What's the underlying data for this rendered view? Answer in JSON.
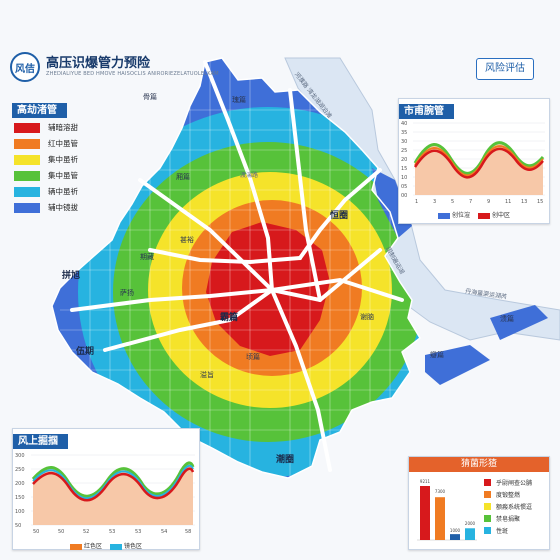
{
  "header": {
    "logo_text": "风佶",
    "title": "高压识爆管力预险",
    "subtitle": "ZHEDIALIYUE BED HMOVE HAISOCLIS ANIRORIEZELATUOLELKAM"
  },
  "risk_button": {
    "label": "风险评估"
  },
  "legend": {
    "title": "高劫渚管",
    "items": [
      {
        "label": "辅暗溶甜",
        "color": "#d7191c"
      },
      {
        "label": "红中虽管",
        "color": "#f07b22"
      },
      {
        "label": "集中虽祈",
        "color": "#f5e32a"
      },
      {
        "label": "集中虽管",
        "color": "#57c23a"
      },
      {
        "label": "辆中虽祈",
        "color": "#27b3e0"
      },
      {
        "label": "辅中镜拔",
        "color": "#3f6fd8"
      }
    ]
  },
  "map": {
    "areas": [
      {
        "name": "骨篇",
        "cls": "area"
      },
      {
        "name": "瑰篇",
        "cls": "area"
      },
      {
        "name": "厢篇",
        "cls": "area"
      },
      {
        "name": "期藏",
        "cls": "area"
      },
      {
        "name": "萨扬",
        "cls": "area"
      },
      {
        "name": "甚裕",
        "cls": "area"
      },
      {
        "name": "拼旭",
        "cls": "big"
      },
      {
        "name": "伍期",
        "cls": "big"
      },
      {
        "name": "霸篇",
        "cls": "big"
      },
      {
        "name": "恒圈",
        "cls": "big"
      },
      {
        "name": "潮圈",
        "cls": "big"
      },
      {
        "name": "顷篇",
        "cls": "area"
      },
      {
        "name": "溢旨",
        "cls": "area"
      },
      {
        "name": "瓣篇",
        "cls": "area"
      },
      {
        "name": "溃篇",
        "cls": "area"
      },
      {
        "name": "谢脑",
        "cls": "area"
      }
    ],
    "roads": [
      {
        "name": "河濮路 湾龙湖湖泊滩"
      },
      {
        "name": "国制遍运湖"
      },
      {
        "name": "丹海量渠运湖芮"
      },
      {
        "name": "渡湍路"
      }
    ]
  },
  "colors": {
    "red": "#d7191c",
    "orange": "#f07b22",
    "yellow": "#f5e32a",
    "green": "#57c23a",
    "cyan": "#27b3e0",
    "blue": "#3f6fd8",
    "accent": "#1f5fa8",
    "stat_head": "#e4622b"
  },
  "charts": {
    "top_right": {
      "title": "市甫腕管",
      "y_ticks": [
        "40",
        "35",
        "30",
        "25",
        "20",
        "15",
        "10",
        "05",
        "00"
      ],
      "x_ticks": [
        "1",
        "3",
        "5",
        "7",
        "9",
        "11",
        "13",
        "15"
      ],
      "legend": [
        {
          "label": "创位渲",
          "color": "#3f6fd8"
        },
        {
          "label": "创中区",
          "color": "#d7191c"
        }
      ]
    },
    "bottom_left": {
      "title": "风上掘掴",
      "y_ticks": [
        "300",
        "250",
        "200",
        "150",
        "100",
        "50"
      ],
      "x_ticks": [
        "50",
        "50",
        "52",
        "53",
        "53",
        "54",
        "58"
      ],
      "legend": [
        {
          "label": "红色区",
          "color": "#f07b22"
        },
        {
          "label": "镜色区",
          "color": "#27b3e0"
        }
      ]
    }
  },
  "stats": {
    "title": "猜菌形猹",
    "bar_labels": [
      "9211",
      "7300",
      "1000",
      "2000"
    ],
    "bars": [
      {
        "value": 9211,
        "color": "#d7191c"
      },
      {
        "value": 7300,
        "color": "#f07b22"
      },
      {
        "value": 1000,
        "color": "#1f5fa8"
      },
      {
        "value": 2000,
        "color": "#27b3e0"
      }
    ],
    "items": [
      {
        "label": "乎尉闸查公脯",
        "color": "#d7191c"
      },
      {
        "label": "度锻整燃",
        "color": "#f07b22"
      },
      {
        "label": "额瘢系统惯逗",
        "color": "#f5e32a"
      },
      {
        "label": "禁皂捐聚",
        "color": "#57c23a"
      },
      {
        "label": "性斑",
        "color": "#27b3e0"
      }
    ]
  }
}
